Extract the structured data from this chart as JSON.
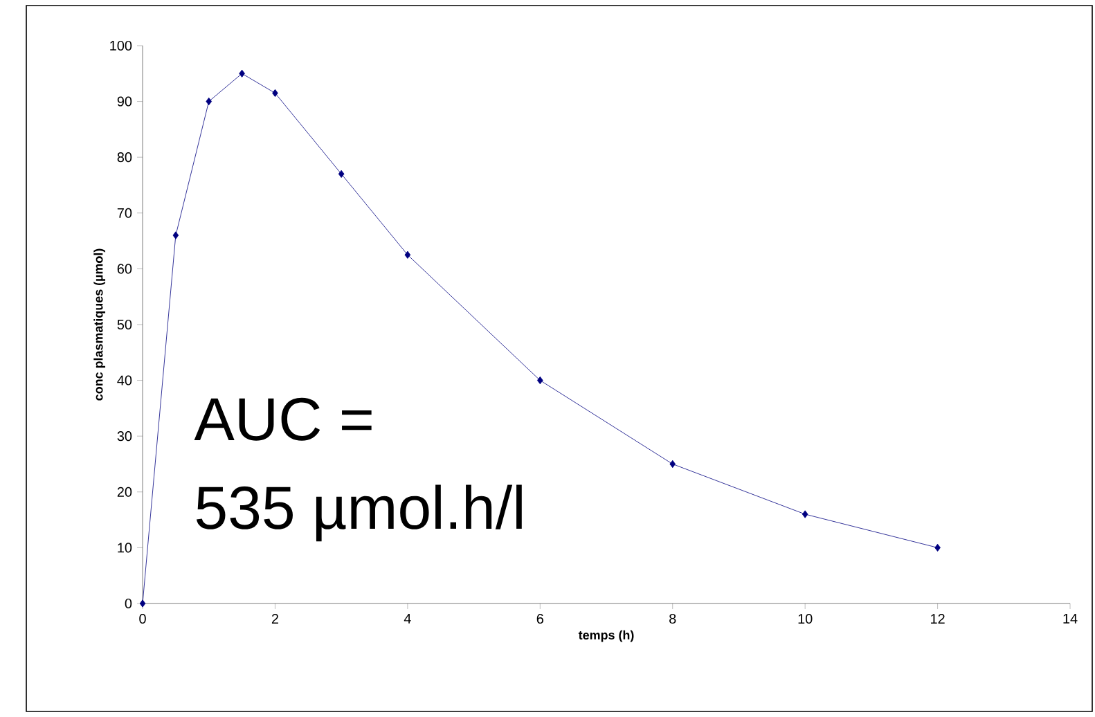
{
  "chart_data": {
    "type": "line",
    "xlabel": "temps (h)",
    "ylabel": "conc plasmatiques (µmol)",
    "x": [
      0,
      0.5,
      1,
      1.5,
      2,
      3,
      4,
      6,
      8,
      10,
      12
    ],
    "series": [
      {
        "color": "#000080",
        "values": [
          0,
          66,
          90,
          95,
          91.5,
          77,
          62.5,
          40,
          25,
          16,
          10
        ]
      }
    ],
    "xlim": [
      0,
      14
    ],
    "xticks": [
      0,
      2,
      4,
      6,
      8,
      10,
      12,
      14
    ],
    "ylim": [
      0,
      100
    ],
    "yticks": [
      0,
      10,
      20,
      30,
      40,
      50,
      60,
      70,
      80,
      90,
      100
    ],
    "marker": "diamond",
    "line_style": "solid",
    "annotations": [
      "AUC =",
      "535 µmol.h/l"
    ]
  }
}
